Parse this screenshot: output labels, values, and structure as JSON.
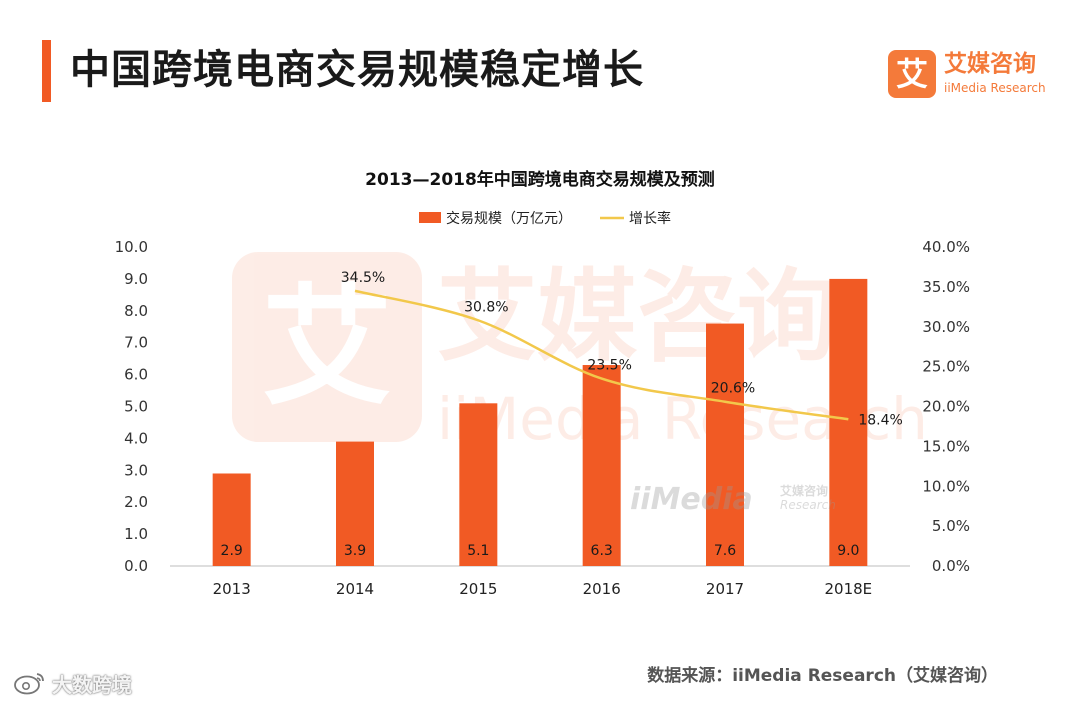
{
  "header": {
    "title": "中国跨境电商交易规模稳定增长"
  },
  "logo": {
    "mark": "艾",
    "name": "艾媒咨询",
    "sub": "iiMedia Research"
  },
  "watermark": {
    "mark": "艾",
    "name": "艾媒咨询",
    "sub": "iiMedia Research",
    "small_main": "iiMedia",
    "small_cn": "艾媒咨询",
    "small_en": "Research"
  },
  "chart_data": {
    "type": "bar+line",
    "title": "2013—2018年中国跨境电商交易规模及预测",
    "categories": [
      "2013",
      "2014",
      "2015",
      "2016",
      "2017",
      "2018E"
    ],
    "series": [
      {
        "name": "交易规模（万亿元）",
        "type": "bar",
        "axis": "left",
        "color": "#f15a24",
        "values": [
          2.9,
          3.9,
          5.1,
          6.3,
          7.6,
          9.0
        ],
        "labels": [
          "2.9",
          "3.9",
          "5.1",
          "6.3",
          "7.6",
          "9.0"
        ]
      },
      {
        "name": "增长率",
        "type": "line",
        "axis": "right",
        "color": "#f2c84b",
        "values": [
          null,
          34.5,
          30.8,
          23.5,
          20.6,
          18.4
        ],
        "labels": [
          "",
          "34.5%",
          "30.8%",
          "23.5%",
          "20.6%",
          "18.4%"
        ]
      }
    ],
    "y_left": {
      "min": 0,
      "max": 10,
      "ticks": [
        "0.0",
        "1.0",
        "2.0",
        "3.0",
        "4.0",
        "5.0",
        "6.0",
        "7.0",
        "8.0",
        "9.0",
        "10.0"
      ]
    },
    "y_right": {
      "min": 0,
      "max": 40,
      "ticks": [
        "0.0%",
        "5.0%",
        "10.0%",
        "15.0%",
        "20.0%",
        "25.0%",
        "30.0%",
        "35.0%",
        "40.0%"
      ]
    },
    "legend_position": "top-center",
    "grid": false
  },
  "footer": {
    "source": "数据来源：iiMedia Research（艾媒咨询）",
    "corner_mark": "大数跨境",
    "corner_icon": "weibo-icon"
  }
}
